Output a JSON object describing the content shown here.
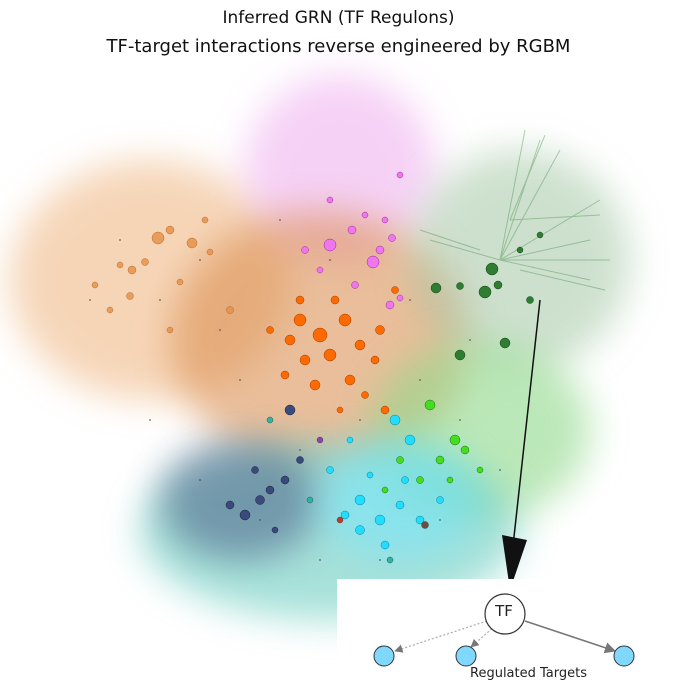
{
  "title": "Inferred GRN (TF Regulons)",
  "subtitle": "TF-target interactions reverse engineered by RGBM",
  "legend": {
    "tf_label": "TF",
    "targets_caption": "Regulated Targets"
  },
  "colors": {
    "orange": "#ff6a00",
    "light_orange": "#e8934a",
    "magenta": "#ee77ee",
    "dark_green": "#2e7d32",
    "green": "#44dd22",
    "cyan": "#22ddff",
    "teal": "#2bb5a5",
    "navy": "#3a4a7a",
    "target_fill": "#80d8ff",
    "arrow": "#111111"
  }
}
